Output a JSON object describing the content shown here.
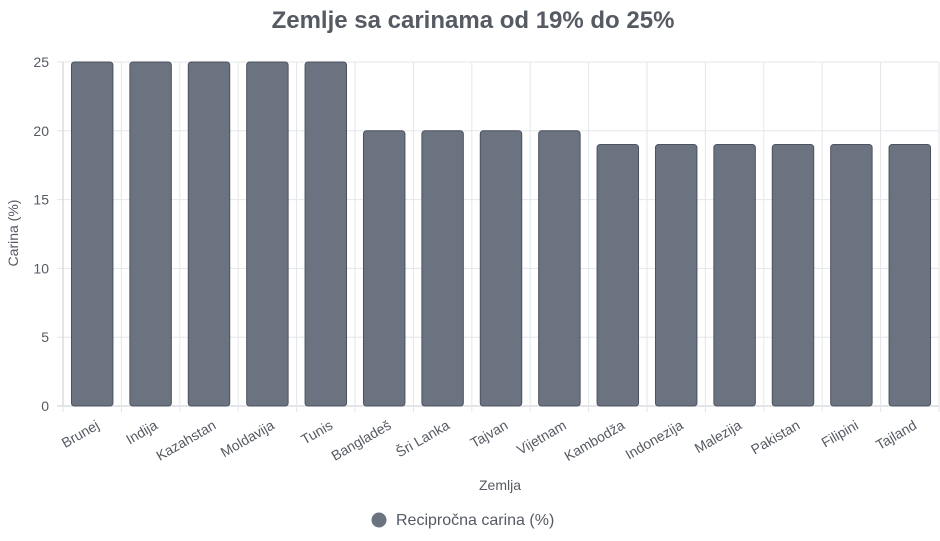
{
  "chart_data": {
    "type": "bar",
    "title": "Zemlje sa carinama od 19% do 25%",
    "xlabel": "Zemlja",
    "ylabel": "Carina (%)",
    "ylim": [
      0,
      25
    ],
    "yticks": [
      0,
      5,
      10,
      15,
      20,
      25
    ],
    "grid": true,
    "legend_position": "bottom",
    "categories": [
      "Brunej",
      "Indija",
      "Kazahstan",
      "Moldavija",
      "Tunis",
      "Bangladeš",
      "Šri Lanka",
      "Tajvan",
      "Vijetnam",
      "Kambodža",
      "Indonezija",
      "Malezija",
      "Pakistan",
      "Filipini",
      "Tajland"
    ],
    "series": [
      {
        "name": "Recipročna carina (%)",
        "color": "#6b7280",
        "values": [
          25,
          25,
          25,
          25,
          25,
          20,
          20,
          20,
          20,
          19,
          19,
          19,
          19,
          19,
          19
        ]
      }
    ]
  }
}
